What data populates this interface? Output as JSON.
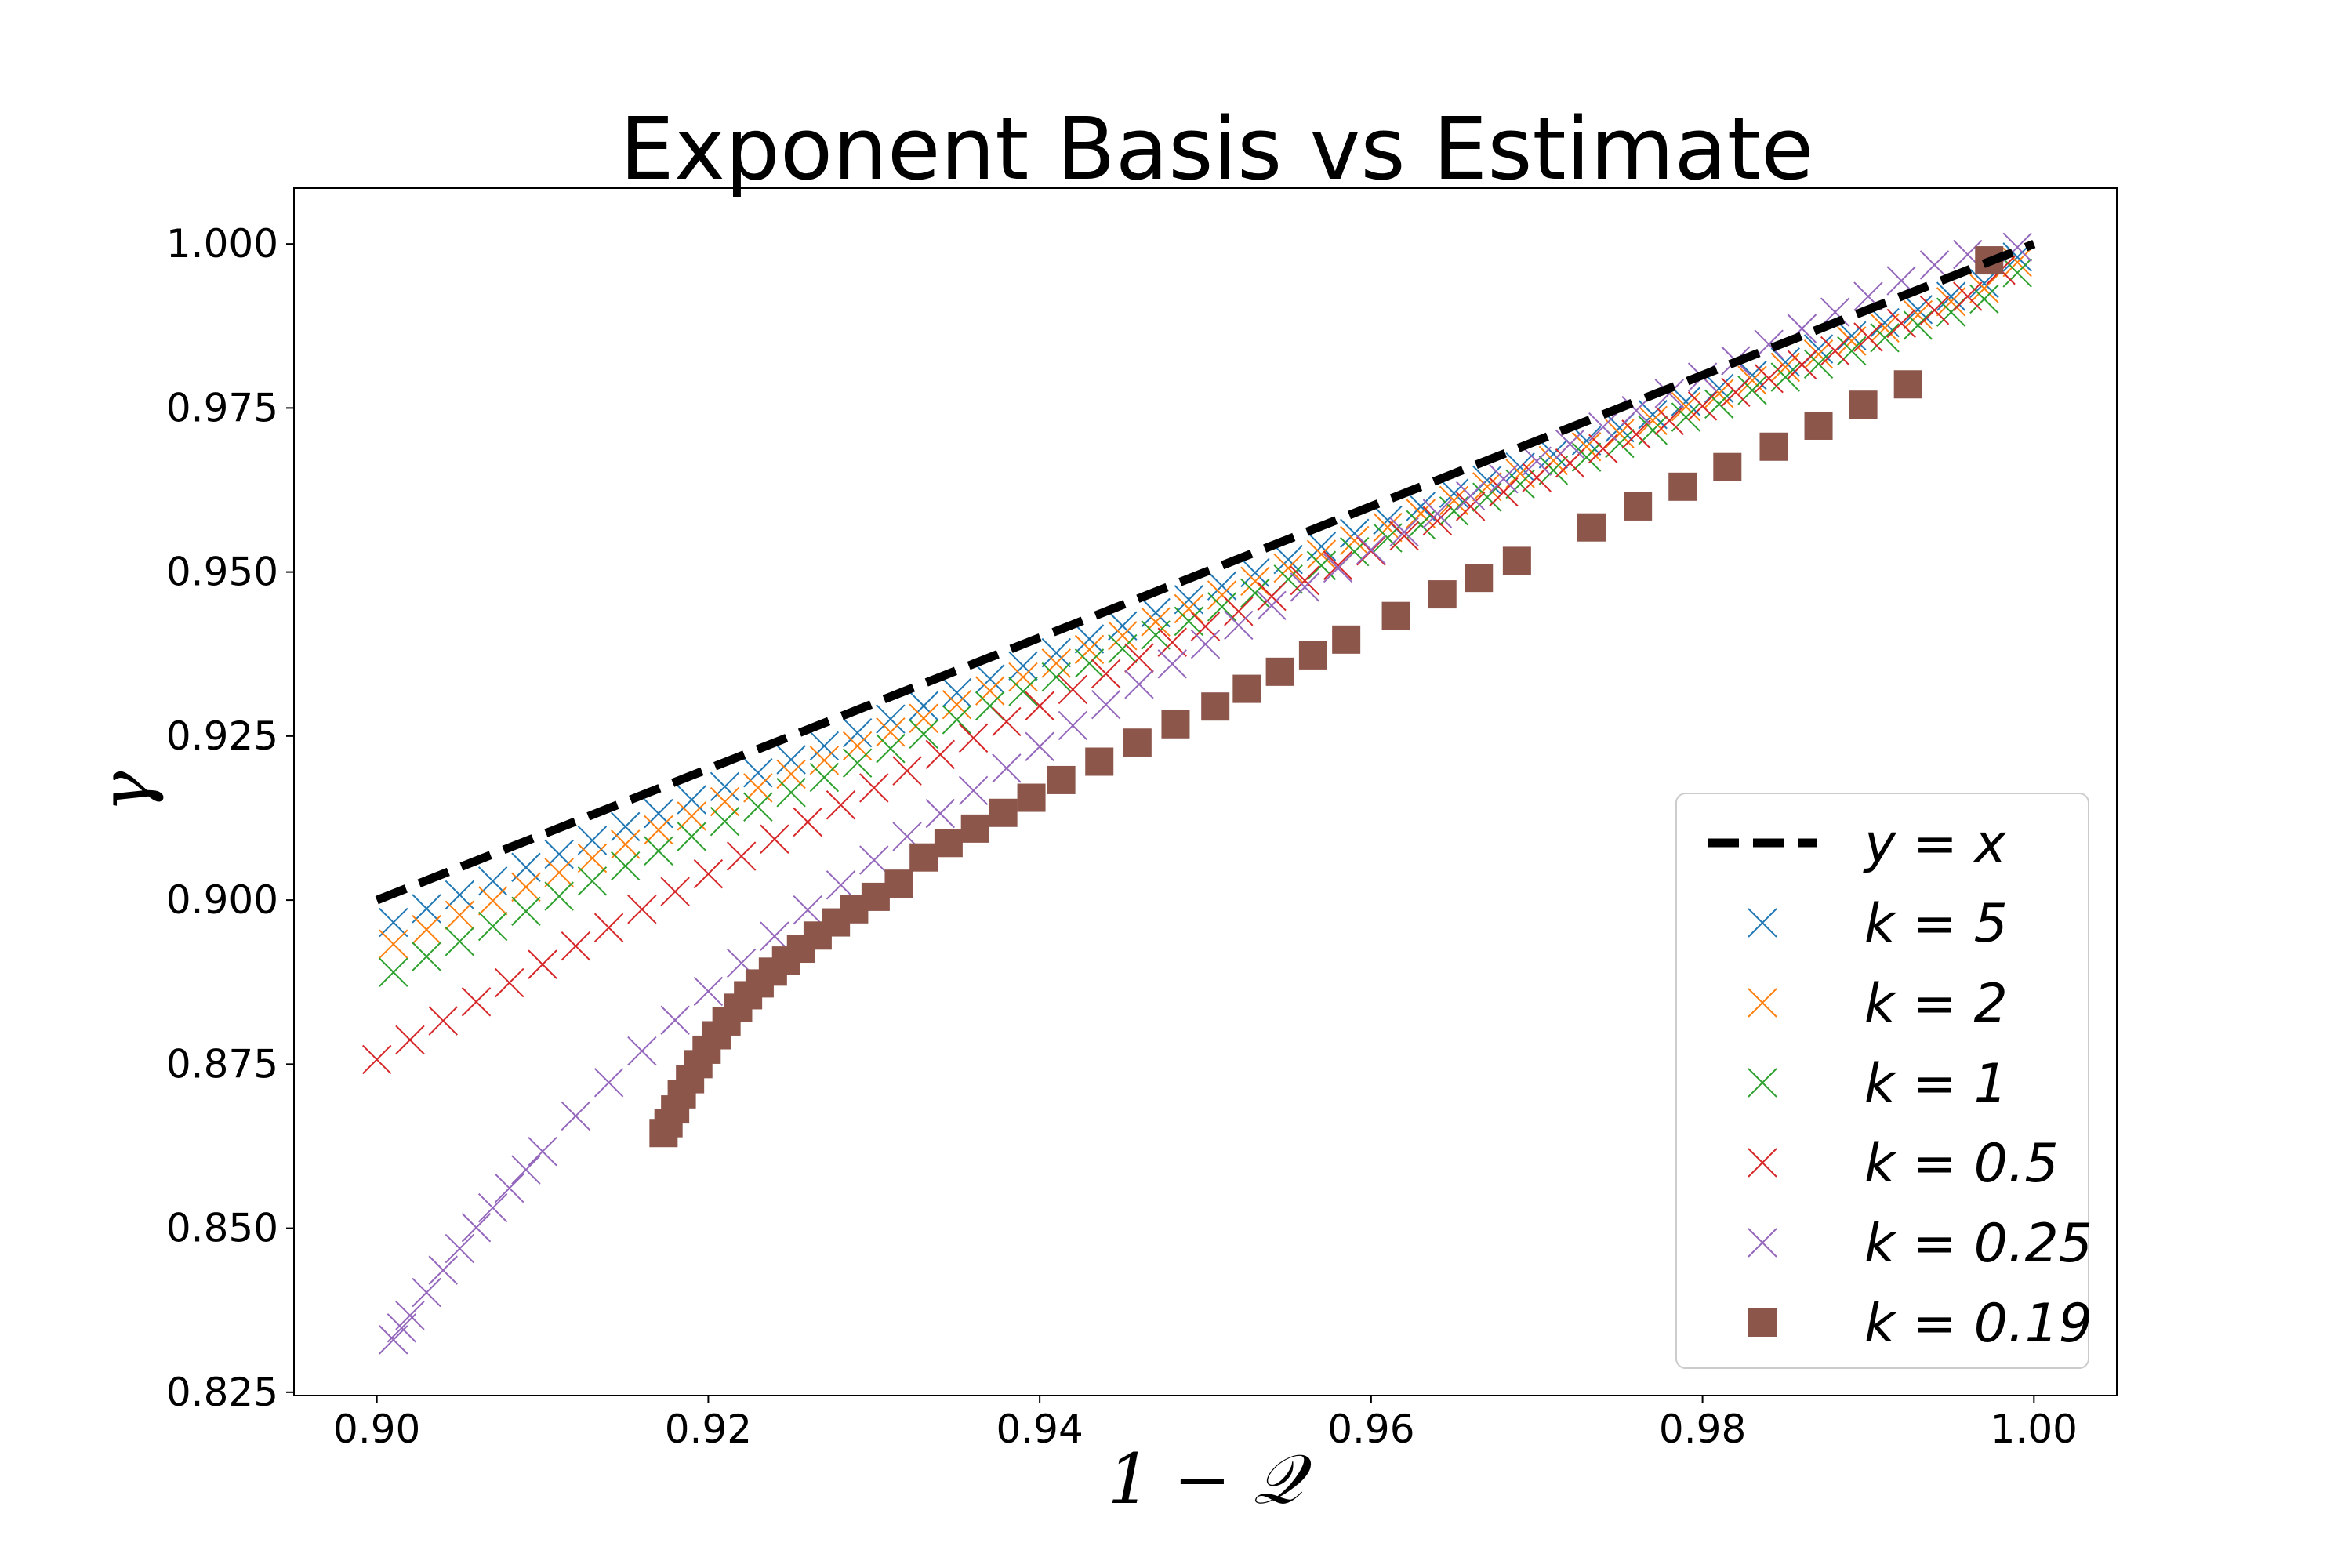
{
  "chart_data": {
    "type": "scatter",
    "title": "Exponent Basis vs Estimate",
    "xlabel": "1 − 𝒬",
    "ylabel": "γ",
    "xlim": [
      0.895,
      1.005
    ],
    "ylim": [
      0.8245,
      1.0085
    ],
    "xticks": [
      0.9,
      0.92,
      0.94,
      0.96,
      0.98,
      1.0
    ],
    "xtick_labels": [
      "0.90",
      "0.92",
      "0.94",
      "0.96",
      "0.98",
      "1.00"
    ],
    "yticks": [
      0.825,
      0.85,
      0.875,
      0.9,
      0.925,
      0.95,
      0.975,
      1.0
    ],
    "ytick_labels": [
      "0.825",
      "0.850",
      "0.875",
      "0.900",
      "0.925",
      "0.950",
      "0.975",
      "1.000"
    ],
    "grid": false,
    "legend_position": "lower-right",
    "reference_line": {
      "name": "y = x",
      "x": [
        0.9,
        1.0
      ],
      "y": [
        0.9,
        1.0
      ],
      "color": "#000000",
      "style": "dashed"
    },
    "series": [
      {
        "name": "k = 5",
        "marker": "x",
        "color": "#1f77b4",
        "x": [
          0.901,
          0.903,
          0.905,
          0.907,
          0.909,
          0.911,
          0.913,
          0.915,
          0.917,
          0.919,
          0.921,
          0.923,
          0.925,
          0.927,
          0.929,
          0.931,
          0.933,
          0.935,
          0.937,
          0.939,
          0.941,
          0.943,
          0.945,
          0.947,
          0.949,
          0.951,
          0.953,
          0.955,
          0.957,
          0.959,
          0.961,
          0.963,
          0.965,
          0.967,
          0.969,
          0.971,
          0.973,
          0.975,
          0.977,
          0.979,
          0.981,
          0.983,
          0.985,
          0.987,
          0.989,
          0.991,
          0.993,
          0.995,
          0.997,
          0.999
        ],
        "y": [
          0.8966,
          0.8987,
          0.9008,
          0.9029,
          0.905,
          0.907,
          0.9091,
          0.9112,
          0.9132,
          0.9153,
          0.9173,
          0.9194,
          0.9214,
          0.9235,
          0.9255,
          0.9276,
          0.9296,
          0.9316,
          0.9337,
          0.9357,
          0.9377,
          0.9398,
          0.9418,
          0.9438,
          0.9458,
          0.9479,
          0.9499,
          0.9519,
          0.9539,
          0.9559,
          0.9579,
          0.96,
          0.962,
          0.964,
          0.966,
          0.968,
          0.97,
          0.972,
          0.974,
          0.976,
          0.978,
          0.98,
          0.982,
          0.984,
          0.986,
          0.988,
          0.99,
          0.992,
          0.994,
          0.998
        ]
      },
      {
        "name": "k = 2",
        "marker": "x",
        "color": "#ff7f0e",
        "x": [
          0.901,
          0.903,
          0.905,
          0.907,
          0.909,
          0.911,
          0.913,
          0.915,
          0.917,
          0.919,
          0.921,
          0.923,
          0.925,
          0.927,
          0.929,
          0.931,
          0.933,
          0.935,
          0.937,
          0.939,
          0.941,
          0.943,
          0.945,
          0.947,
          0.949,
          0.951,
          0.953,
          0.955,
          0.957,
          0.959,
          0.961,
          0.963,
          0.965,
          0.967,
          0.969,
          0.971,
          0.973,
          0.975,
          0.977,
          0.979,
          0.981,
          0.983,
          0.985,
          0.987,
          0.989,
          0.991,
          0.993,
          0.995,
          0.997,
          0.999
        ],
        "y": [
          0.8933,
          0.8955,
          0.8977,
          0.8999,
          0.902,
          0.9042,
          0.9064,
          0.9085,
          0.9107,
          0.9128,
          0.915,
          0.9171,
          0.9192,
          0.9213,
          0.9235,
          0.9256,
          0.9277,
          0.9298,
          0.9319,
          0.934,
          0.9361,
          0.9382,
          0.9403,
          0.9424,
          0.9444,
          0.9465,
          0.9486,
          0.9506,
          0.9527,
          0.9548,
          0.9568,
          0.9589,
          0.9609,
          0.963,
          0.965,
          0.967,
          0.9691,
          0.9711,
          0.9731,
          0.9752,
          0.9772,
          0.9792,
          0.9812,
          0.9832,
          0.9852,
          0.9872,
          0.9892,
          0.9912,
          0.9932,
          0.9972
        ]
      },
      {
        "name": "k = 1",
        "marker": "x",
        "color": "#2ca02c",
        "x": [
          0.901,
          0.903,
          0.905,
          0.907,
          0.909,
          0.911,
          0.913,
          0.915,
          0.917,
          0.919,
          0.921,
          0.923,
          0.925,
          0.927,
          0.929,
          0.931,
          0.933,
          0.935,
          0.937,
          0.939,
          0.941,
          0.943,
          0.945,
          0.947,
          0.949,
          0.951,
          0.953,
          0.955,
          0.957,
          0.959,
          0.961,
          0.963,
          0.965,
          0.967,
          0.969,
          0.971,
          0.973,
          0.975,
          0.977,
          0.979,
          0.981,
          0.983,
          0.985,
          0.987,
          0.989,
          0.991,
          0.993,
          0.995,
          0.997,
          0.999
        ],
        "y": [
          0.889,
          0.8914,
          0.8937,
          0.896,
          0.8983,
          0.9006,
          0.9029,
          0.9052,
          0.9075,
          0.9097,
          0.912,
          0.9142,
          0.9164,
          0.9187,
          0.9209,
          0.9231,
          0.9253,
          0.9275,
          0.9296,
          0.9318,
          0.934,
          0.9361,
          0.9383,
          0.9404,
          0.9425,
          0.9447,
          0.9468,
          0.9489,
          0.951,
          0.9531,
          0.9552,
          0.9572,
          0.9593,
          0.9614,
          0.9634,
          0.9655,
          0.9675,
          0.9696,
          0.9716,
          0.9736,
          0.9756,
          0.9777,
          0.9797,
          0.9817,
          0.9837,
          0.9857,
          0.9876,
          0.9896,
          0.9916,
          0.9956
        ]
      },
      {
        "name": "k = 0.5",
        "marker": "x",
        "color": "#d62728",
        "x": [
          0.9,
          0.902,
          0.904,
          0.906,
          0.908,
          0.91,
          0.912,
          0.914,
          0.916,
          0.918,
          0.92,
          0.922,
          0.924,
          0.926,
          0.928,
          0.93,
          0.932,
          0.934,
          0.936,
          0.938,
          0.94,
          0.942,
          0.944,
          0.946,
          0.948,
          0.95,
          0.952,
          0.954,
          0.956,
          0.958,
          0.96,
          0.962,
          0.964,
          0.966,
          0.968,
          0.97,
          0.972,
          0.974,
          0.976,
          0.978,
          0.98,
          0.982,
          0.984,
          0.986,
          0.988,
          0.99,
          0.992,
          0.994,
          0.996,
          0.998
        ],
        "y": [
          0.8757,
          0.8787,
          0.8816,
          0.8845,
          0.8874,
          0.8902,
          0.893,
          0.8958,
          0.8986,
          0.9013,
          0.904,
          0.9067,
          0.9093,
          0.9119,
          0.9145,
          0.9171,
          0.9197,
          0.9222,
          0.9247,
          0.9272,
          0.9296,
          0.9321,
          0.9345,
          0.9369,
          0.9393,
          0.9417,
          0.944,
          0.9463,
          0.9487,
          0.951,
          0.9532,
          0.9555,
          0.9578,
          0.96,
          0.9622,
          0.9644,
          0.9666,
          0.9688,
          0.971,
          0.9731,
          0.9753,
          0.9774,
          0.9795,
          0.9816,
          0.9837,
          0.9858,
          0.9879,
          0.9899,
          0.992,
          0.996
        ]
      },
      {
        "name": "k = 0.25",
        "marker": "x",
        "color": "#9467bd",
        "x": [
          0.901,
          0.9015,
          0.902,
          0.903,
          0.904,
          0.905,
          0.906,
          0.907,
          0.908,
          0.909,
          0.91,
          0.912,
          0.914,
          0.916,
          0.918,
          0.92,
          0.922,
          0.924,
          0.926,
          0.928,
          0.93,
          0.932,
          0.934,
          0.936,
          0.938,
          0.94,
          0.942,
          0.944,
          0.946,
          0.948,
          0.95,
          0.952,
          0.954,
          0.956,
          0.958,
          0.96,
          0.962,
          0.964,
          0.966,
          0.968,
          0.97,
          0.972,
          0.974,
          0.976,
          0.978,
          0.98,
          0.982,
          0.984,
          0.986,
          0.988,
          0.99,
          0.992,
          0.994,
          0.996,
          0.999
        ],
        "y": [
          0.833,
          0.8348,
          0.8367,
          0.8402,
          0.8436,
          0.8469,
          0.8501,
          0.8531,
          0.8561,
          0.8589,
          0.8617,
          0.8671,
          0.8722,
          0.877,
          0.8817,
          0.8861,
          0.8904,
          0.8945,
          0.8985,
          0.9023,
          0.9061,
          0.9097,
          0.9132,
          0.9167,
          0.9201,
          0.9234,
          0.9266,
          0.9298,
          0.9329,
          0.936,
          0.939,
          0.9419,
          0.9449,
          0.9477,
          0.9506,
          0.9534,
          0.9561,
          0.9589,
          0.9616,
          0.9642,
          0.9669,
          0.9695,
          0.9721,
          0.9746,
          0.9772,
          0.9797,
          0.9822,
          0.9847,
          0.9871,
          0.9896,
          0.992,
          0.9944,
          0.9968,
          0.9984,
          0.9995
        ]
      },
      {
        "name": "k = 0.19",
        "marker": "s",
        "color": "#8c564b",
        "x": [
          0.9173,
          0.9176,
          0.918,
          0.9184,
          0.9189,
          0.9194,
          0.9199,
          0.9205,
          0.9211,
          0.9218,
          0.9224,
          0.9231,
          0.9239,
          0.9247,
          0.9256,
          0.9266,
          0.9277,
          0.9288,
          0.9301,
          0.9315,
          0.933,
          0.9345,
          0.9361,
          0.9378,
          0.9395,
          0.9413,
          0.9436,
          0.9459,
          0.9482,
          0.9506,
          0.9525,
          0.9545,
          0.9565,
          0.9585,
          0.9615,
          0.9643,
          0.9665,
          0.9688,
          0.9733,
          0.9761,
          0.9788,
          0.9815,
          0.9843,
          0.987,
          0.9897,
          0.9924,
          0.9973
        ],
        "y": [
          0.8645,
          0.866,
          0.8681,
          0.8704,
          0.8727,
          0.875,
          0.8772,
          0.8794,
          0.8815,
          0.8836,
          0.8855,
          0.8873,
          0.8891,
          0.8908,
          0.8926,
          0.8946,
          0.8966,
          0.8986,
          0.9005,
          0.9025,
          0.9065,
          0.9087,
          0.9109,
          0.9133,
          0.9156,
          0.9183,
          0.9211,
          0.924,
          0.9268,
          0.9295,
          0.9322,
          0.9348,
          0.9373,
          0.9397,
          0.9433,
          0.9466,
          0.9491,
          0.9517,
          0.9568,
          0.96,
          0.963,
          0.966,
          0.9691,
          0.9723,
          0.9755,
          0.9786,
          0.9975
        ]
      }
    ]
  }
}
